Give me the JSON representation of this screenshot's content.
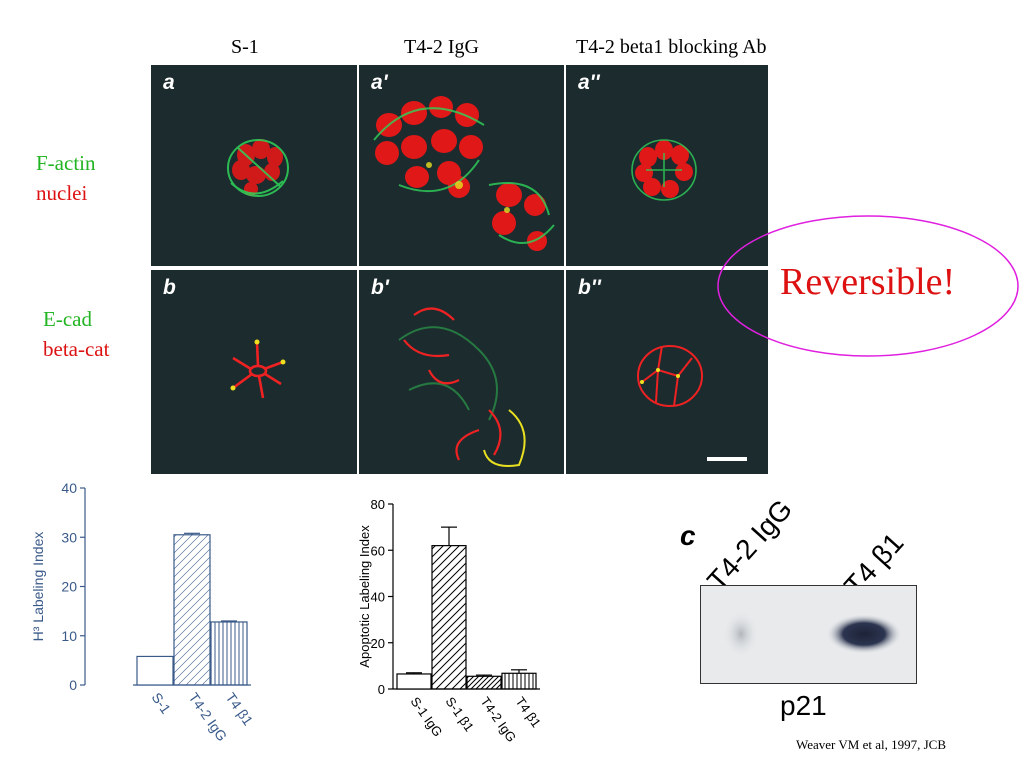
{
  "columns": [
    "S-1",
    "T4-2 IgG",
    "T4-2 beta1 blocking Ab"
  ],
  "row_labels": {
    "row_a": [
      {
        "text": "F-actin",
        "color": "#22b422"
      },
      {
        "text": "nuclei",
        "color": "#dd1111"
      }
    ],
    "row_b": [
      {
        "text": "E-cad",
        "color": "#22b422"
      },
      {
        "text": "beta-cat",
        "color": "#dd1111"
      }
    ]
  },
  "panels": [
    "a",
    "a'",
    "a''",
    "b",
    "b'",
    "b''"
  ],
  "callout": {
    "text": "Reversible!",
    "color": "#dd1111",
    "ellipse_color": "#e020e0"
  },
  "citation": "Weaver VM et al, 1997, JCB",
  "blot": {
    "panel_label": "c",
    "lanes": [
      "T4-2 IgG",
      "T4 β1"
    ],
    "protein": "p21"
  },
  "chart_data": [
    {
      "type": "bar",
      "ylabel": "H³ Labeling Index",
      "ylim": [
        0,
        40
      ],
      "yticks": [
        0,
        10,
        20,
        30,
        40
      ],
      "categories": [
        "S-1",
        "T4-2 IgG",
        "T4 β1"
      ],
      "values": [
        5.8,
        30.5,
        12.8
      ],
      "errors": [
        0,
        0.3,
        0.2
      ],
      "fills": [
        "none",
        "diag-light",
        "vertical"
      ],
      "color": "#3a5a8a"
    },
    {
      "type": "bar",
      "ylabel": "Apoptotic Labeling Index",
      "ylim": [
        0,
        80
      ],
      "yticks": [
        0,
        20,
        40,
        60,
        80
      ],
      "categories": [
        "S-1 IgG",
        "S-1 β1",
        "T4-2 IgG",
        "T4 β1"
      ],
      "values": [
        6.5,
        62,
        5.5,
        6.8
      ],
      "errors": [
        0.5,
        8,
        0.5,
        1.5
      ],
      "fills": [
        "none",
        "diag",
        "diag-dense",
        "vertical"
      ],
      "color": "#000000"
    }
  ]
}
